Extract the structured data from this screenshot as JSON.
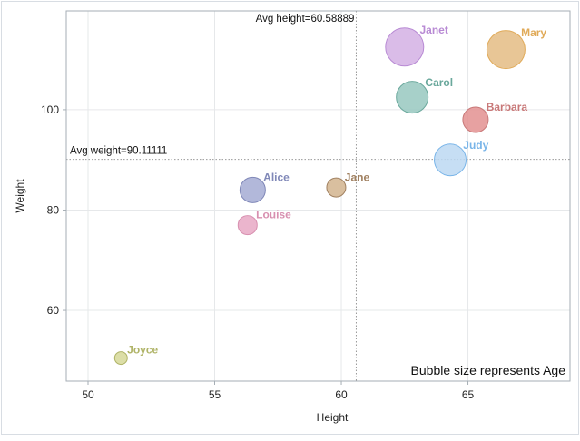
{
  "chart_data": {
    "type": "scatter",
    "subtype": "bubble",
    "xlabel": "Height",
    "ylabel": "Weight",
    "xlim": [
      49.14,
      69.03
    ],
    "ylim": [
      45.9,
      119.7
    ],
    "xticks": [
      50,
      55,
      60,
      65
    ],
    "yticks": [
      60,
      80,
      100
    ],
    "grid": true,
    "size_note": "Bubble size represents Age",
    "reference_lines": [
      {
        "axis": "x",
        "value": 60.58889,
        "label": "Avg height=60.58889"
      },
      {
        "axis": "y",
        "value": 90.11111,
        "label": "Avg weight=90.11111"
      }
    ],
    "points": [
      {
        "name": "Alice",
        "x": 56.5,
        "y": 84,
        "size": 13,
        "color": "#a4acd4",
        "label_color": "#8088b8"
      },
      {
        "name": "Barbara",
        "x": 65.3,
        "y": 98,
        "size": 13,
        "color": "#e39090",
        "label_color": "#c87878"
      },
      {
        "name": "Carol",
        "x": 62.8,
        "y": 102.5,
        "size": 14,
        "color": "#98c8c0",
        "label_color": "#6aa89c"
      },
      {
        "name": "Jane",
        "x": 59.8,
        "y": 84.5,
        "size": 12,
        "color": "#d2b48e",
        "label_color": "#a08060"
      },
      {
        "name": "Janet",
        "x": 62.5,
        "y": 112.5,
        "size": 15,
        "color": "#d4b0e4",
        "label_color": "#b88ad4"
      },
      {
        "name": "Joyce",
        "x": 51.3,
        "y": 50.5,
        "size": 11,
        "color": "#d6d898",
        "label_color": "#b0b468"
      },
      {
        "name": "Judy",
        "x": 64.3,
        "y": 90,
        "size": 14,
        "color": "#bcd8f2",
        "label_color": "#78b4e8"
      },
      {
        "name": "Louise",
        "x": 56.3,
        "y": 77,
        "size": 12,
        "color": "#e8a8c4",
        "label_color": "#d890b0"
      },
      {
        "name": "Mary",
        "x": 66.5,
        "y": 112,
        "size": 15,
        "color": "#e4bc84",
        "label_color": "#e0aa58"
      }
    ]
  }
}
